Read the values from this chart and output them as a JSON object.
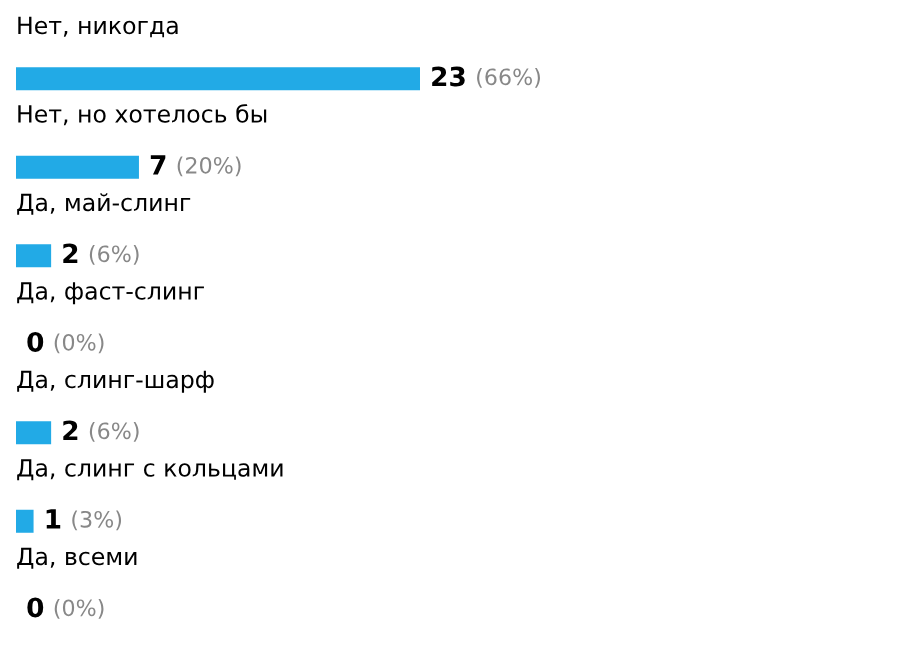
{
  "chart_data": {
    "type": "bar",
    "orientation": "horizontal",
    "categories": [
      "Нет, никогда",
      "Нет, но хотелось бы",
      "Да, май-слинг",
      "Да, фаст-слинг",
      "Да, слинг-шарф",
      "Да, слинг с кольцами",
      "Да, всеми"
    ],
    "values": [
      23,
      7,
      2,
      0,
      2,
      1,
      0
    ],
    "value_labels": [
      "23 (66%)",
      "7 (20%)",
      "2 (6%)",
      "0 (0%)",
      "2 (6%)",
      "1 (3%)",
      "0 (0%)"
    ],
    "color": "#22aae6"
  }
}
